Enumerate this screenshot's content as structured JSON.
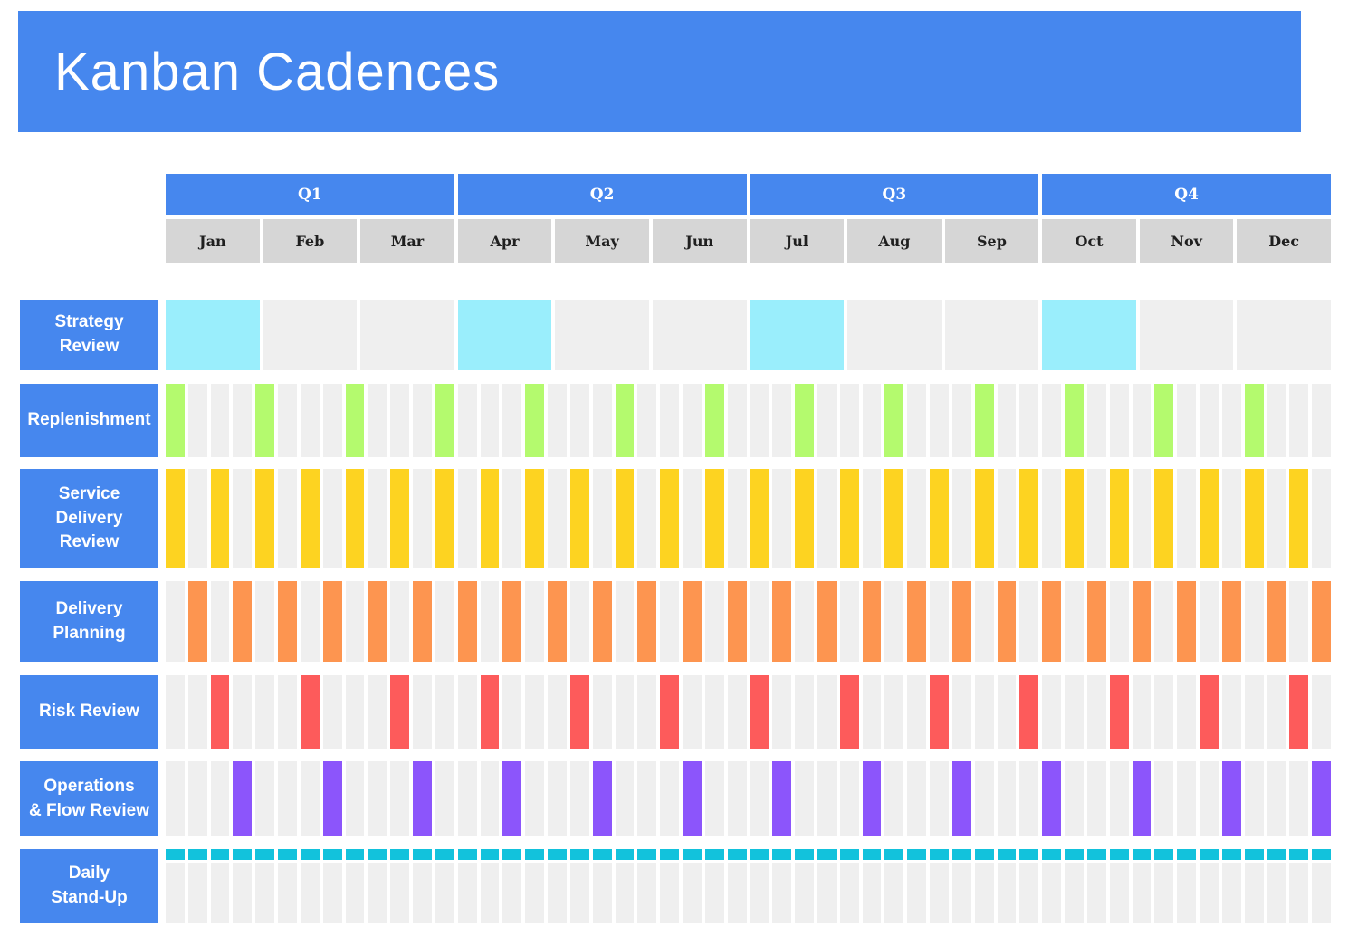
{
  "title": "Kanban Cadences",
  "colors": {
    "accent_blue": "#4687ee",
    "header_month_gray": "#d6d6d6",
    "inactive_cell_gray": "#efefef",
    "strategy_cyan": "#9aeefc",
    "replenishment_green": "#b4fa6e",
    "service_delivery_yellow": "#fdd321",
    "delivery_planning_orange": "#fd9550",
    "risk_red": "#fd5b5b",
    "operations_purple": "#8c55fb",
    "daily_teal": "#12c2dc",
    "text_dark": "#1f1f1f",
    "text_white": "#ffffff"
  },
  "timeline": {
    "quarters": [
      "Q1",
      "Q2",
      "Q3",
      "Q4"
    ],
    "months": [
      "Jan",
      "Feb",
      "Mar",
      "Apr",
      "May",
      "Jun",
      "Jul",
      "Aug",
      "Sep",
      "Oct",
      "Nov",
      "Dec"
    ],
    "weeks_per_year": 52
  },
  "chart_data": {
    "type": "heatmap",
    "title": "Kanban Cadences",
    "x_axis": {
      "quarters": [
        "Q1",
        "Q2",
        "Q3",
        "Q4"
      ],
      "months": [
        "Jan",
        "Feb",
        "Mar",
        "Apr",
        "May",
        "Jun",
        "Jul",
        "Aug",
        "Sep",
        "Oct",
        "Nov",
        "Dec"
      ],
      "weeks": 52
    },
    "legend_position": "none",
    "grid": "off",
    "rows": [
      {
        "label": "Strategy Review",
        "label_lines": [
          "Strategy",
          "Review"
        ],
        "cadence": "quarterly",
        "unit": "month",
        "units_total": 12,
        "active_units": [
          1,
          4,
          7,
          10
        ],
        "color": "#9aeefc",
        "render": "full"
      },
      {
        "label": "Replenishment",
        "label_lines": [
          "Replenishment"
        ],
        "cadence": "every 4 weeks",
        "unit": "week",
        "units_total": 52,
        "active_units": [
          1,
          5,
          9,
          13,
          17,
          21,
          25,
          29,
          33,
          37,
          41,
          45,
          49
        ],
        "color": "#b4fa6e",
        "render": "full"
      },
      {
        "label": "Service Delivery Review",
        "label_lines": [
          "Service",
          "Delivery",
          "Review"
        ],
        "cadence": "bi-weekly, odd weeks",
        "unit": "week",
        "units_total": 52,
        "active_units": [
          1,
          3,
          5,
          7,
          9,
          11,
          13,
          15,
          17,
          19,
          21,
          23,
          25,
          27,
          29,
          31,
          33,
          35,
          37,
          39,
          41,
          43,
          45,
          47,
          49,
          51
        ],
        "color": "#fdd321",
        "render": "full"
      },
      {
        "label": "Delivery Planning",
        "label_lines": [
          "Delivery",
          "Planning"
        ],
        "cadence": "bi-weekly, even weeks",
        "unit": "week",
        "units_total": 52,
        "active_units": [
          2,
          4,
          6,
          8,
          10,
          12,
          14,
          16,
          18,
          20,
          22,
          24,
          26,
          28,
          30,
          32,
          34,
          36,
          38,
          40,
          42,
          44,
          46,
          48,
          50,
          52
        ],
        "color": "#fd9550",
        "render": "full"
      },
      {
        "label": "Risk Review",
        "label_lines": [
          "Risk Review"
        ],
        "cadence": "every 4 weeks, week 3",
        "unit": "week",
        "units_total": 52,
        "active_units": [
          3,
          7,
          11,
          15,
          19,
          23,
          27,
          31,
          35,
          39,
          43,
          47,
          51
        ],
        "color": "#fd5b5b",
        "render": "full"
      },
      {
        "label": "Operations & Flow Review",
        "label_lines": [
          "Operations",
          "& Flow Review"
        ],
        "cadence": "every 4 weeks, week 4",
        "unit": "week",
        "units_total": 52,
        "active_units": [
          4,
          8,
          12,
          16,
          20,
          24,
          28,
          32,
          36,
          40,
          44,
          48,
          52
        ],
        "color": "#8c55fb",
        "render": "full"
      },
      {
        "label": "Daily Stand-Up",
        "label_lines": [
          "Daily",
          "Stand-Up"
        ],
        "cadence": "daily, every week",
        "unit": "week",
        "units_total": 52,
        "active_units": [
          1,
          2,
          3,
          4,
          5,
          6,
          7,
          8,
          9,
          10,
          11,
          12,
          13,
          14,
          15,
          16,
          17,
          18,
          19,
          20,
          21,
          22,
          23,
          24,
          25,
          26,
          27,
          28,
          29,
          30,
          31,
          32,
          33,
          34,
          35,
          36,
          37,
          38,
          39,
          40,
          41,
          42,
          43,
          44,
          45,
          46,
          47,
          48,
          49,
          50,
          51,
          52
        ],
        "color": "#12c2dc",
        "render": "top-strip"
      }
    ]
  }
}
